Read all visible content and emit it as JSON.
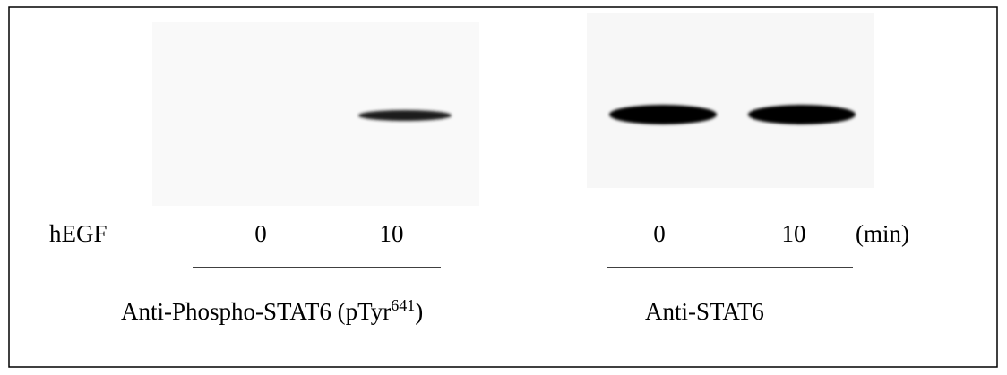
{
  "figure": {
    "treatment_label": "hEGF",
    "lanes": [
      "0",
      "10",
      "0",
      "10"
    ],
    "unit": "(min)",
    "antibody_1": {
      "text": "Anti-Phospho-STAT6 (pTyr",
      "superscript": "641",
      "close": ")"
    },
    "antibody_2": "Anti-STAT6"
  }
}
